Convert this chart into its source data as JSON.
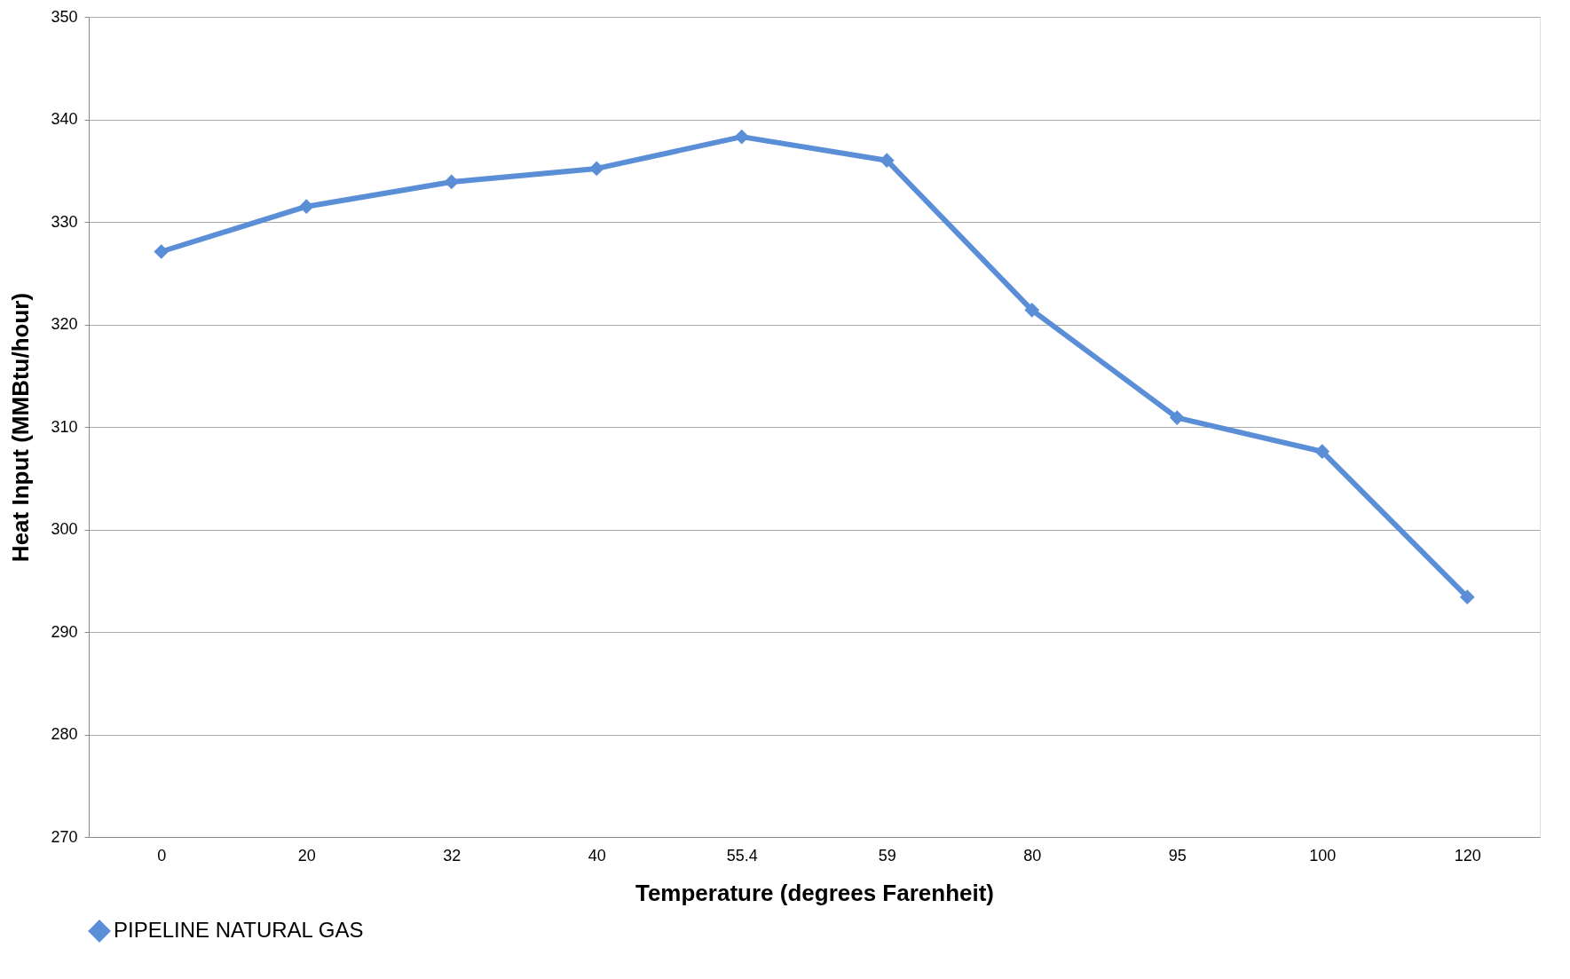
{
  "chart_data": {
    "type": "line",
    "xlabel": "Temperature (degrees Farenheit)",
    "ylabel": "Heat Input (MMBtu/hour)",
    "categories": [
      "0",
      "20",
      "32",
      "40",
      "55.4",
      "59",
      "80",
      "95",
      "100",
      "120"
    ],
    "series": [
      {
        "name": "PIPELINE NATURAL GAS",
        "color": "#5a8ed6",
        "values": [
          327.1,
          331.5,
          333.9,
          335.2,
          338.3,
          336.0,
          321.4,
          310.9,
          307.6,
          293.4
        ]
      }
    ],
    "ylim": [
      270,
      350
    ],
    "yticks": [
      270,
      280,
      290,
      300,
      310,
      320,
      330,
      340,
      350
    ],
    "grid": "y",
    "legend": "bottom",
    "marker": "diamond",
    "line_style": "solid"
  }
}
